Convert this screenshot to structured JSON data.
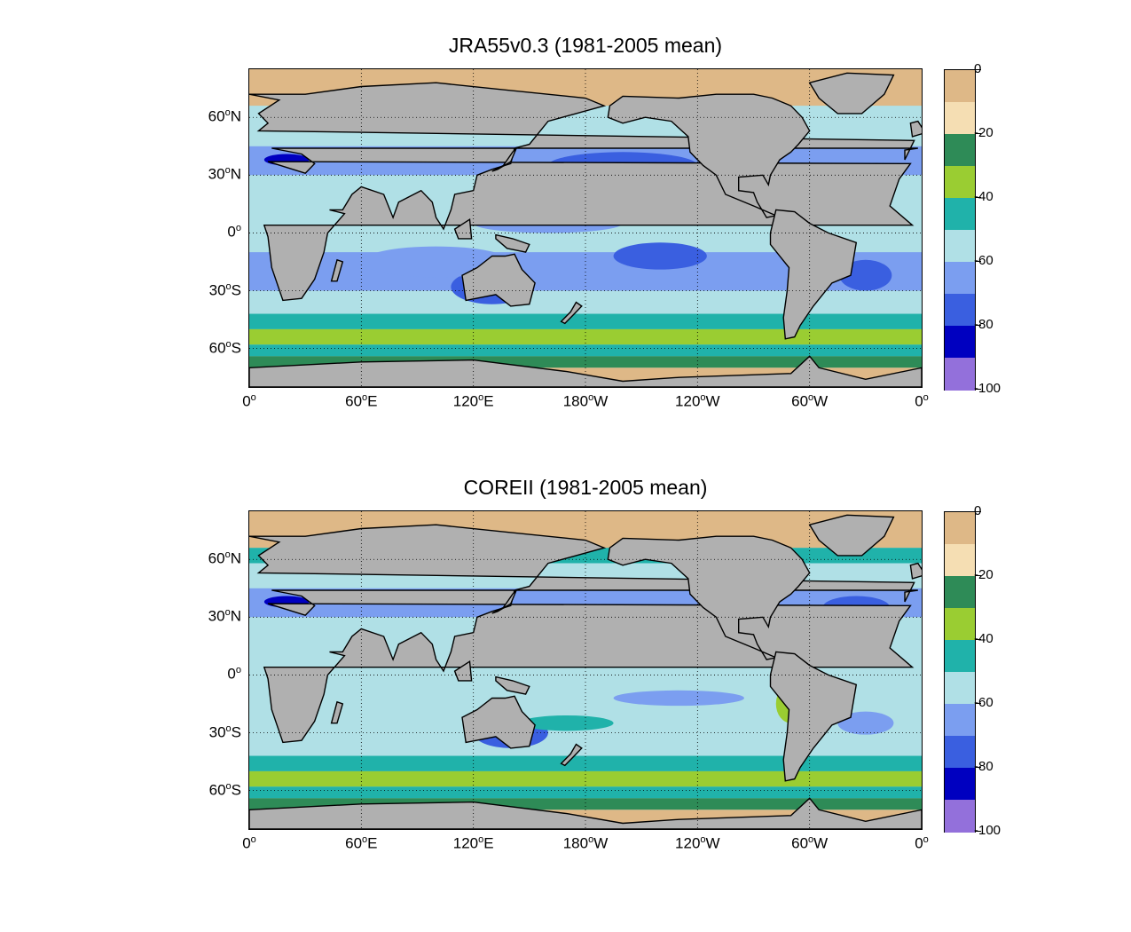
{
  "panels": [
    {
      "title": "JRA55v0.3 (1981-2005 mean)"
    },
    {
      "title": "COREII (1981-2005 mean)"
    }
  ],
  "lat_labels": [
    {
      "deg": "60",
      "hemi": "N",
      "lat": 60
    },
    {
      "deg": "30",
      "hemi": "N",
      "lat": 30
    },
    {
      "deg": "0",
      "hemi": "",
      "lat": 0
    },
    {
      "deg": "30",
      "hemi": "S",
      "lat": -30
    },
    {
      "deg": "60",
      "hemi": "S",
      "lat": -60
    }
  ],
  "lon_labels": [
    {
      "deg": "0",
      "hemi": "",
      "lon": 0
    },
    {
      "deg": "60",
      "hemi": "E",
      "lon": 60
    },
    {
      "deg": "120",
      "hemi": "E",
      "lon": 120
    },
    {
      "deg": "180",
      "hemi": "W",
      "lon": 180
    },
    {
      "deg": "120",
      "hemi": "W",
      "lon": 240
    },
    {
      "deg": "60",
      "hemi": "W",
      "lon": 300
    },
    {
      "deg": "0",
      "hemi": "",
      "lon": 360
    }
  ],
  "map_extent": {
    "lon": [
      0,
      360
    ],
    "lat": [
      -80,
      85
    ]
  },
  "colorbar": {
    "range": [
      -100,
      0
    ],
    "tick_labels": [
      "0",
      "-20",
      "-40",
      "-60",
      "-80",
      "-100"
    ],
    "colors": [
      "#deb887",
      "#f5deb3",
      "#2e8b57",
      "#9acd32",
      "#20b2aa",
      "#b0e0e6",
      "#7b9ef0",
      "#3a5fe0",
      "#0000c0",
      "#9370db"
    ]
  },
  "land_color": "#b0b0b0"
}
